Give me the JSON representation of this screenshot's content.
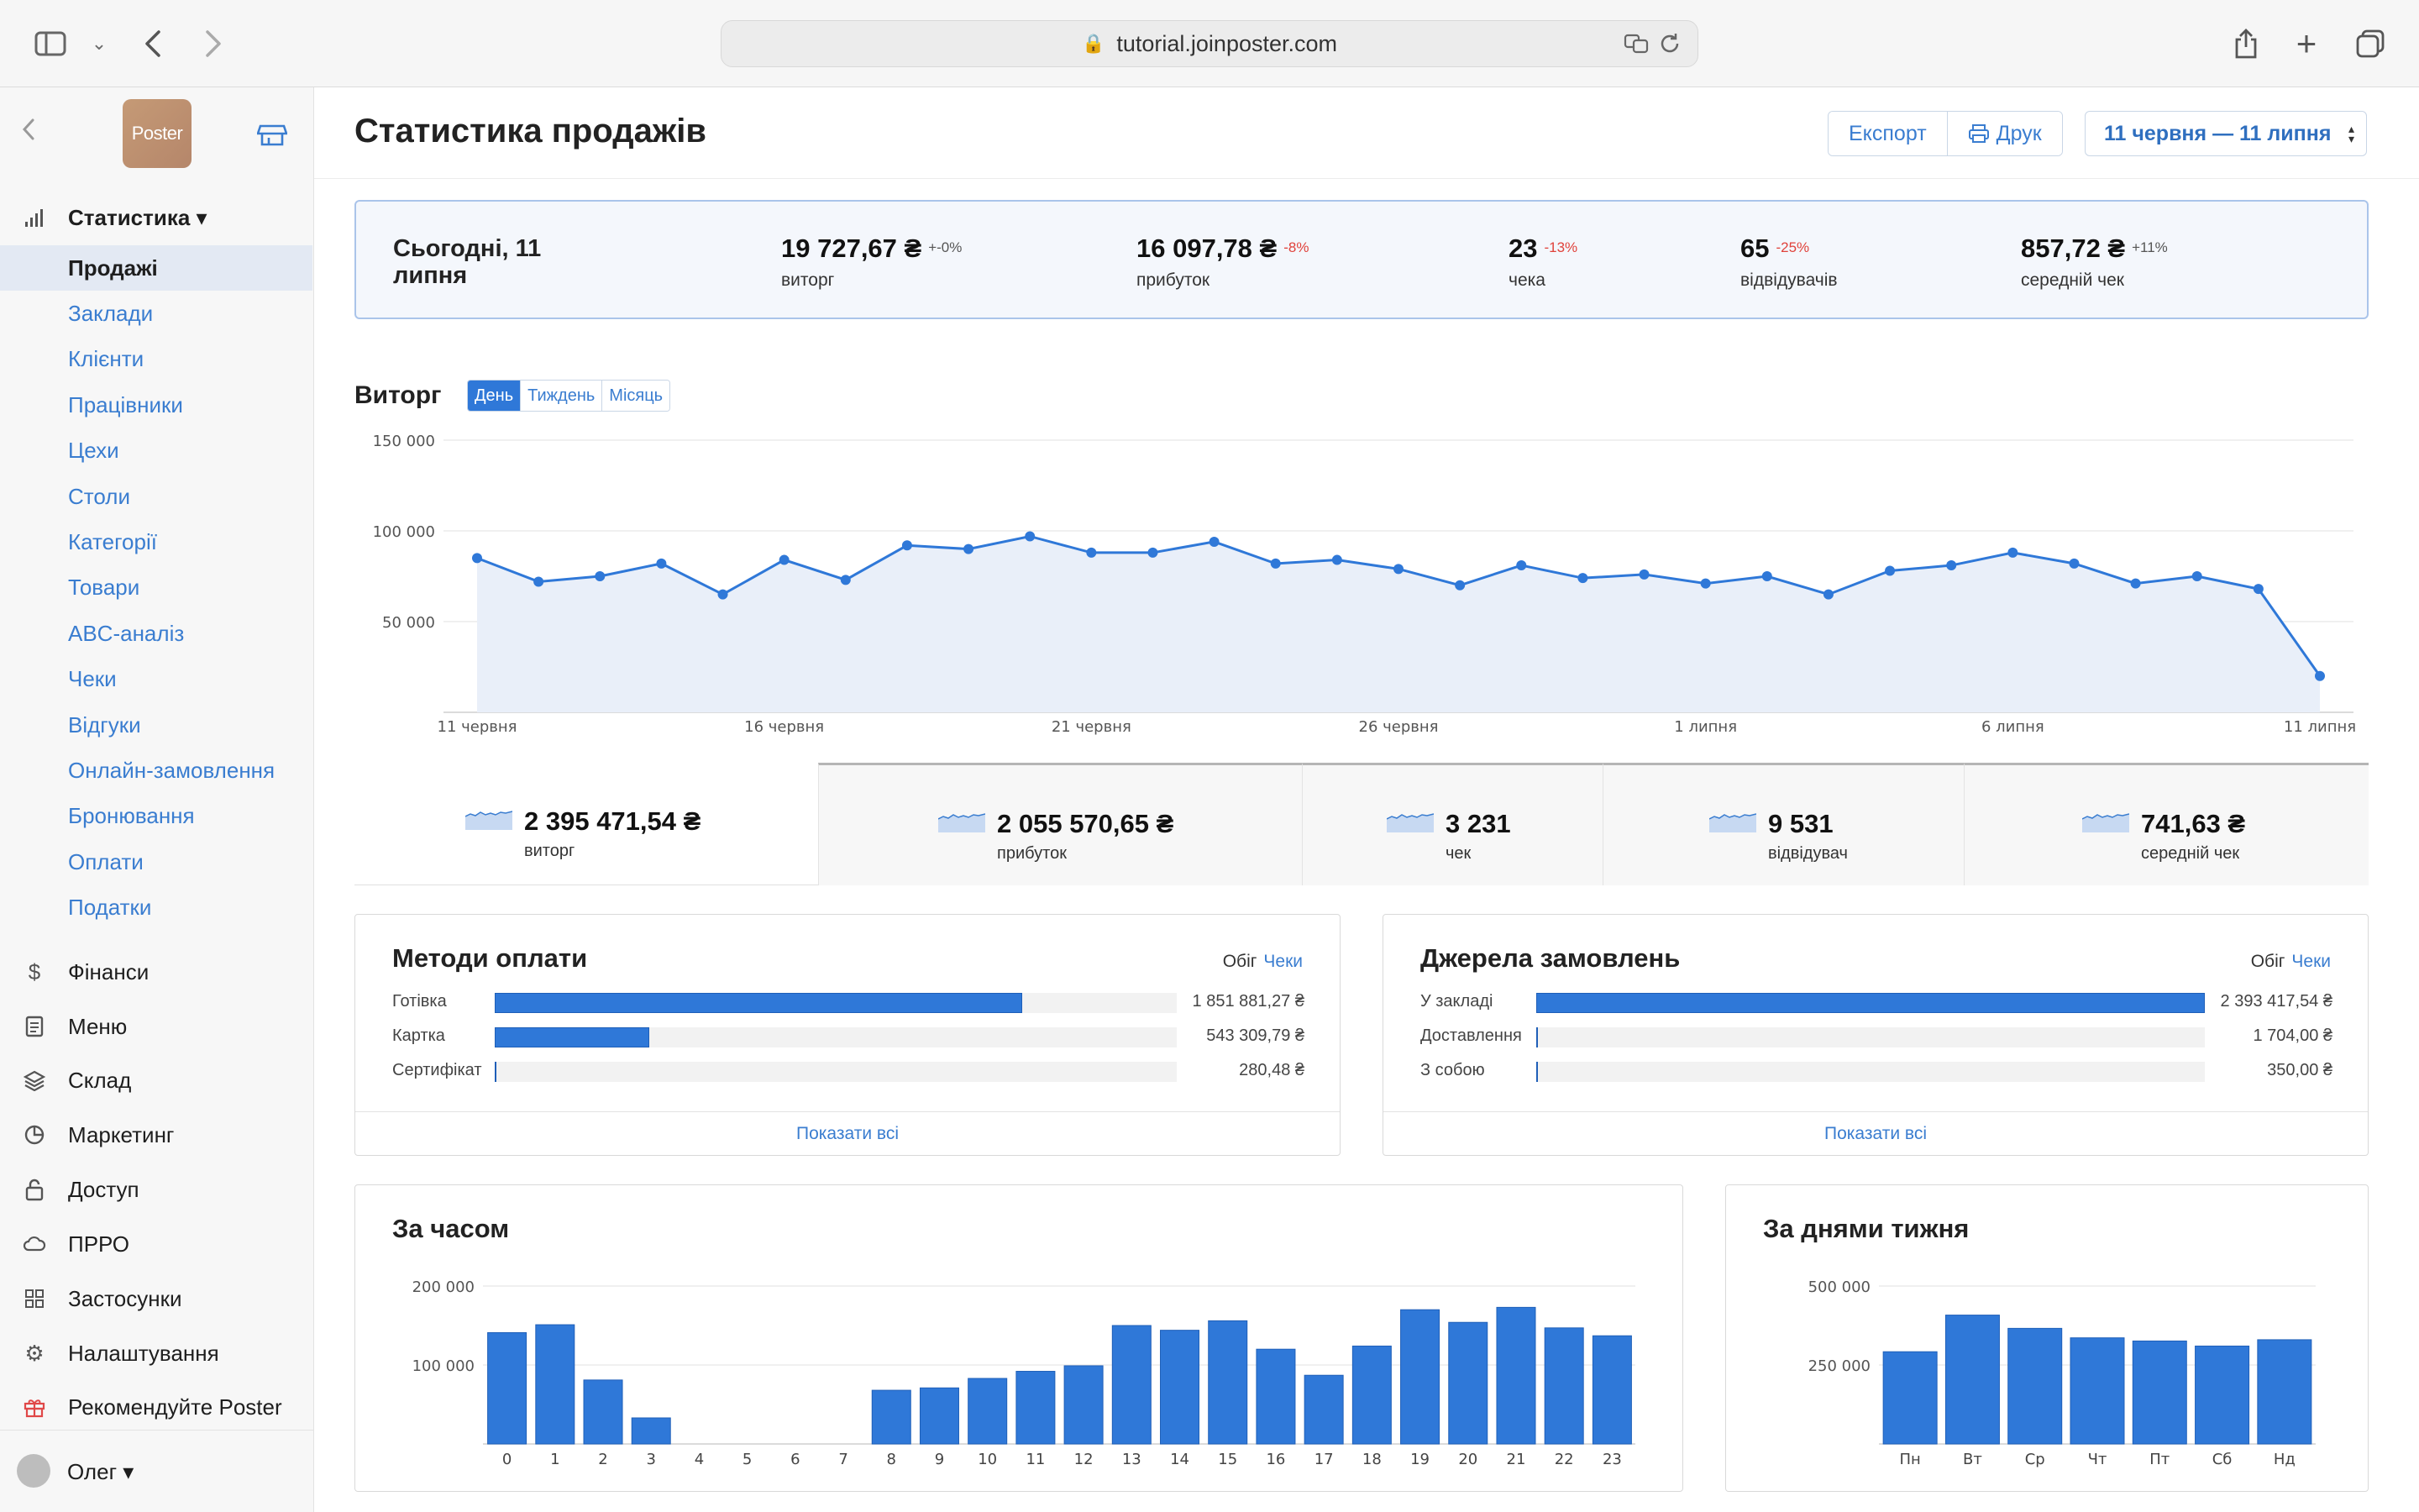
{
  "browser": {
    "url": "tutorial.joinposter.com"
  },
  "sidebar": {
    "logo_text": "Poster",
    "sections": [
      {
        "label": "Статистика ▾",
        "icon": "bar-chart-icon"
      },
      {
        "label": "Фінанси",
        "icon": "dollar-icon"
      },
      {
        "label": "Меню",
        "icon": "document-icon"
      },
      {
        "label": "Склад",
        "icon": "layers-icon"
      },
      {
        "label": "Маркетинг",
        "icon": "pie-icon"
      },
      {
        "label": "Доступ",
        "icon": "lock-icon"
      },
      {
        "label": "ПРРО",
        "icon": "cloud-icon"
      },
      {
        "label": "Застосунки",
        "icon": "grid-icon"
      },
      {
        "label": "Налаштування",
        "icon": "gear-icon"
      },
      {
        "label": "Рекомендуйте Poster",
        "icon": "gift-icon"
      }
    ],
    "stats_items": [
      "Продажі",
      "Заклади",
      "Клієнти",
      "Працівники",
      "Цехи",
      "Столи",
      "Категорії",
      "Товари",
      "ABC-аналіз",
      "Чеки",
      "Відгуки",
      "Онлайн-замовлення",
      "Бронювання",
      "Оплати",
      "Податки"
    ],
    "active_item": "Продажі",
    "user": "Олег ▾"
  },
  "header": {
    "title": "Статистика продажів",
    "export_label": "Експорт",
    "print_label": "Друк",
    "date_range": "11 червня — 11 липня"
  },
  "today": {
    "date_label": "Сьогодні, 11 липня",
    "metrics": [
      {
        "value": "19 727,67 ₴",
        "delta": "+-0%",
        "label": "виторг",
        "color": "#555555"
      },
      {
        "value": "16 097,78 ₴",
        "delta": "-8%",
        "label": "прибуток",
        "color": "#e0423b"
      },
      {
        "value": "23",
        "delta": "-13%",
        "label": "чека",
        "color": "#e0423b"
      },
      {
        "value": "65",
        "delta": "-25%",
        "label": "відвідувачів",
        "color": "#e0423b"
      },
      {
        "value": "857,72 ₴",
        "delta": "+11%",
        "label": "середній чек",
        "color": "#555555"
      }
    ]
  },
  "revenue": {
    "title": "Виторг",
    "tabs": [
      "День",
      "Тиждень",
      "Місяць"
    ],
    "active_tab": "День"
  },
  "totals": [
    {
      "value": "2 395 471,54 ₴",
      "label": "виторг"
    },
    {
      "value": "2 055 570,65 ₴",
      "label": "прибуток"
    },
    {
      "value": "3 231",
      "label": "чек"
    },
    {
      "value": "9 531",
      "label": "відвідувач"
    },
    {
      "value": "741,63 ₴",
      "label": "середній чек"
    }
  ],
  "payment_methods": {
    "title": "Методи оплати",
    "toggle_a": "Обіг",
    "toggle_b": "Чеки",
    "rows": [
      {
        "name": "Готівка",
        "value": "1 851 881,27 ₴",
        "share": 0.773
      },
      {
        "name": "Картка",
        "value": "543 309,79 ₴",
        "share": 0.227
      },
      {
        "name": "Сертифікат",
        "value": "280,48 ₴",
        "share": 0.002
      }
    ],
    "show_all": "Показати всі"
  },
  "order_sources": {
    "title": "Джерела замовлень",
    "toggle_a": "Обіг",
    "toggle_b": "Чеки",
    "rows": [
      {
        "name": "У закладі",
        "value": "2 393 417,54 ₴",
        "share": 1.0
      },
      {
        "name": "Доставлення",
        "value": "1 704,00 ₴",
        "share": 0.002
      },
      {
        "name": "З собою",
        "value": "350,00 ₴",
        "share": 0.002
      }
    ],
    "show_all": "Показати всі"
  },
  "chart_data": [
    {
      "type": "area",
      "title": "Виторг",
      "x": [
        "11 червня",
        "12 червня",
        "13 червня",
        "14 червня",
        "15 червня",
        "16 червня",
        "17 червня",
        "18 червня",
        "19 червня",
        "20 червня",
        "21 червня",
        "22 червня",
        "23 червня",
        "24 червня",
        "25 червня",
        "26 червня",
        "27 червня",
        "28 червня",
        "29 червня",
        "30 червня",
        "1 липня",
        "2 липня",
        "3 липня",
        "4 липня",
        "5 липня",
        "6 липня",
        "7 липня",
        "8 липня",
        "9 липня",
        "10 липня",
        "11 липня"
      ],
      "x_tick_labels": [
        "11 червня",
        "16 червня",
        "21 червня",
        "26 червня",
        "1 липня",
        "6 липня",
        "11 липня"
      ],
      "values": [
        85000,
        72000,
        75000,
        82000,
        65000,
        84000,
        73000,
        92000,
        90000,
        97000,
        88000,
        88000,
        94000,
        82000,
        84000,
        79000,
        70000,
        81000,
        74000,
        76000,
        71000,
        75000,
        65000,
        78000,
        81000,
        88000,
        82000,
        71000,
        75000,
        68000,
        20000
      ],
      "y_ticks": [
        "50 000",
        "100 000",
        "150 000"
      ],
      "ylim": [
        0,
        150000
      ],
      "grid": true,
      "color": "#2f78d8"
    },
    {
      "type": "bar",
      "title": "За часом",
      "categories": [
        "0",
        "1",
        "2",
        "3",
        "4",
        "5",
        "6",
        "7",
        "8",
        "9",
        "10",
        "11",
        "12",
        "13",
        "14",
        "15",
        "16",
        "17",
        "18",
        "19",
        "20",
        "21",
        "22",
        "23"
      ],
      "values": [
        141000,
        151000,
        81000,
        33000,
        0,
        0,
        0,
        0,
        68000,
        71000,
        83000,
        92000,
        99000,
        150000,
        144000,
        156000,
        120000,
        87000,
        124000,
        170000,
        154000,
        173000,
        147000,
        137000
      ],
      "y_ticks": [
        "100 000",
        "200 000"
      ],
      "ylim": [
        0,
        200000
      ],
      "color": "#2f78d8"
    },
    {
      "type": "bar",
      "title": "За днями тижня",
      "categories": [
        "Пн",
        "Вт",
        "Ср",
        "Чт",
        "Пт",
        "Сб",
        "Нд"
      ],
      "values": [
        292000,
        408000,
        366000,
        336000,
        326000,
        310000,
        330000
      ],
      "y_ticks": [
        "250 000",
        "500 000"
      ],
      "ylim": [
        0,
        500000
      ],
      "color": "#2f78d8"
    }
  ]
}
